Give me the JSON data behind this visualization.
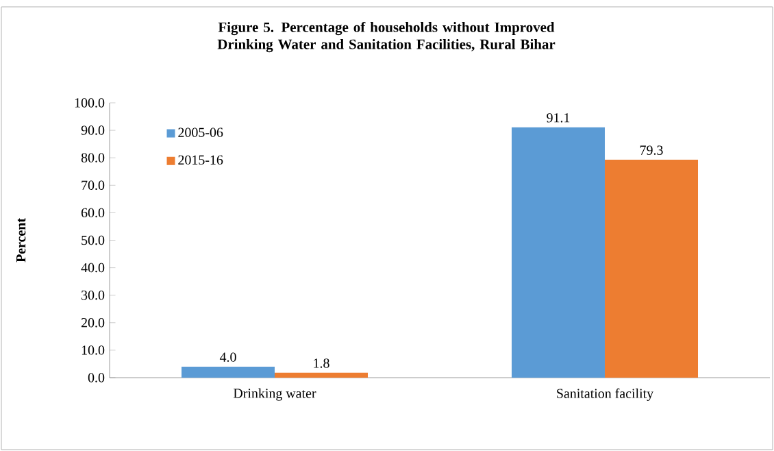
{
  "chart_data": {
    "type": "bar",
    "title": "Figure 5. Percentage of households without Improved Drinking Water and Sanitation Facilities, Rural Bihar",
    "ylabel": "Percent",
    "categories": [
      "Drinking water",
      "Sanitation facility"
    ],
    "series": [
      {
        "name": "2005-06",
        "color": "#5b9bd5",
        "values": [
          4.0,
          91.1
        ],
        "value_labels": [
          "4.0",
          "91.1"
        ]
      },
      {
        "name": "2015-16",
        "color": "#ed7d31",
        "values": [
          1.8,
          79.3
        ],
        "value_labels": [
          "1.8",
          "79.3"
        ]
      }
    ],
    "ylim": [
      0,
      100
    ],
    "yticks": [
      {
        "value": 0,
        "label": "0.0"
      },
      {
        "value": 10,
        "label": "10.0"
      },
      {
        "value": 20,
        "label": "20.0"
      },
      {
        "value": 30,
        "label": "30.0"
      },
      {
        "value": 40,
        "label": "40.0"
      },
      {
        "value": 50,
        "label": "50.0"
      },
      {
        "value": 60,
        "label": "60.0"
      },
      {
        "value": 70,
        "label": "70.0"
      },
      {
        "value": 80,
        "label": "80.0"
      },
      {
        "value": 90,
        "label": "90.0"
      },
      {
        "value": 100,
        "label": "100.0"
      }
    ],
    "grid": false,
    "legend": "top left"
  }
}
